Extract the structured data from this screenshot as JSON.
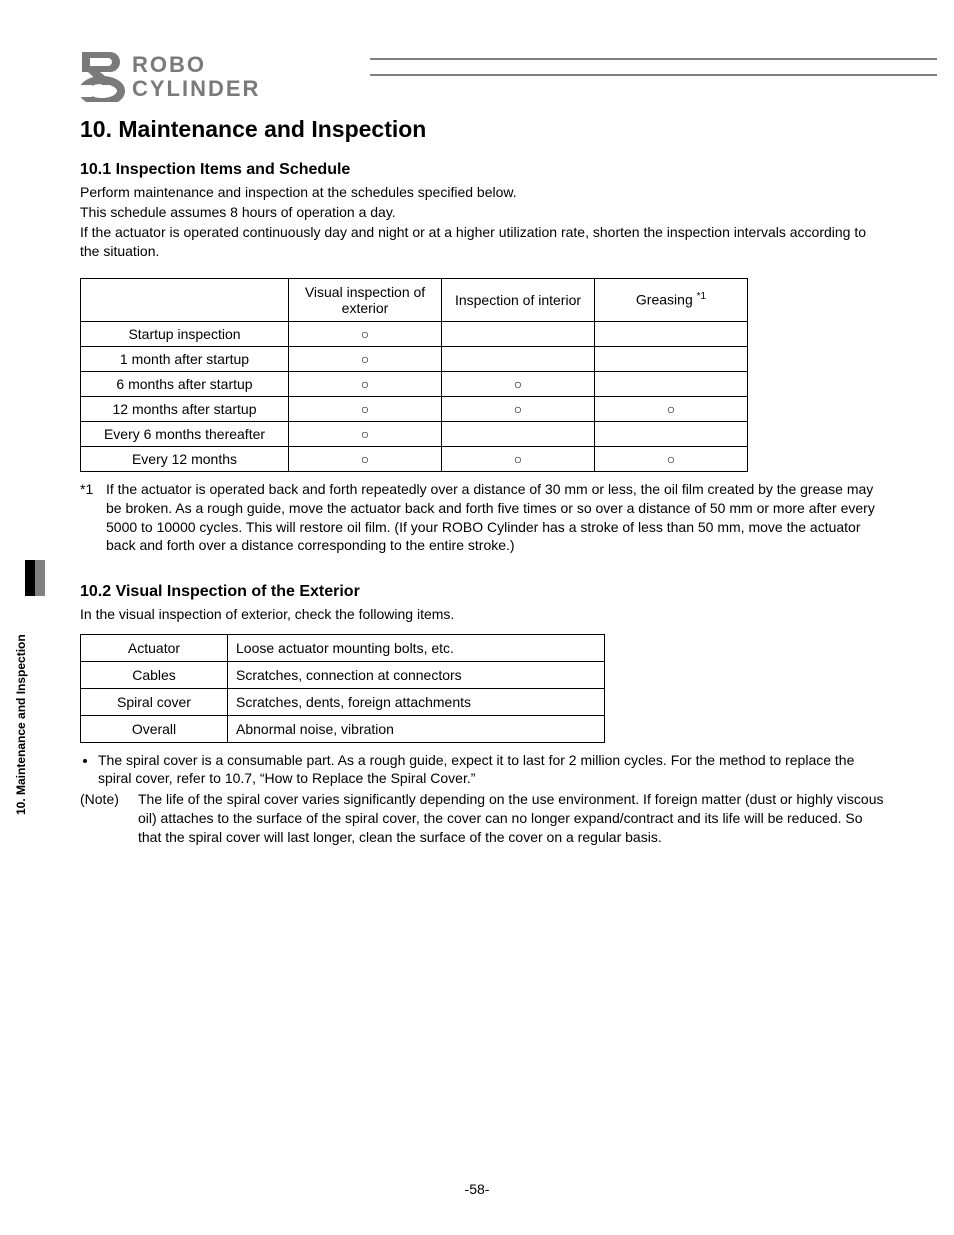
{
  "brand": {
    "line1": "ROBO",
    "line2": "CYLINDER"
  },
  "sideTab": "10. Maintenance and Inspection",
  "chapter": "10. Maintenance and Inspection",
  "section1": {
    "title": "10.1  Inspection Items and Schedule",
    "p1": "Perform maintenance and inspection at the schedules specified below.",
    "p2": "This schedule assumes 8 hours of operation a day.",
    "p3": "If the actuator is operated continuously day and night or at a higher utilization rate, shorten the inspection intervals according to the situation."
  },
  "scheduleTable": {
    "headers": [
      "",
      "Visual inspection of exterior",
      "Inspection of interior",
      "Greasing"
    ],
    "greasingSup": "*1",
    "circle": "○",
    "rows": [
      {
        "label": "Startup inspection",
        "c1": true,
        "c2": false,
        "c3": false
      },
      {
        "label": "1 month after startup",
        "c1": true,
        "c2": false,
        "c3": false
      },
      {
        "label": "6 months after startup",
        "c1": true,
        "c2": true,
        "c3": false
      },
      {
        "label": "12 months after startup",
        "c1": true,
        "c2": true,
        "c3": true
      },
      {
        "label": "Every 6 months thereafter",
        "c1": true,
        "c2": false,
        "c3": false
      },
      {
        "label": "Every 12 months",
        "c1": true,
        "c2": true,
        "c3": true
      }
    ]
  },
  "footnote1": {
    "mark": "*1",
    "text": "If the actuator is operated back and forth repeatedly over a distance of 30 mm or less, the oil film created by the grease may be broken. As a rough guide, move the actuator back and forth five times or so over a distance of 50 mm or more after every 5000 to 10000 cycles. This will restore oil film. (If your ROBO Cylinder has a stroke of less than 50 mm, move the actuator back and forth over a distance corresponding to the entire stroke.)",
    "colors": {
      "text": "#000000"
    }
  },
  "section2": {
    "title": "10.2  Visual Inspection of the Exterior",
    "intro": "In the visual inspection of exterior, check the following items."
  },
  "visTable": {
    "rows": [
      {
        "a": "Actuator",
        "b": "Loose actuator mounting bolts, etc."
      },
      {
        "a": "Cables",
        "b": "Scratches, connection at connectors"
      },
      {
        "a": "Spiral cover",
        "b": "Scratches, dents, foreign attachments"
      },
      {
        "a": "Overall",
        "b": "Abnormal noise, vibration"
      }
    ]
  },
  "bullet1": "The spiral cover is a consumable part. As a rough guide, expect it to last for 2 million cycles. For the method to replace the spiral cover, refer to 10.7, “How to Replace the Spiral Cover.”",
  "note": {
    "mark": "(Note)",
    "text": "The life of the spiral cover varies significantly depending on the use environment. If foreign matter (dust or highly viscous oil) attaches to the surface of the spiral cover, the cover can no longer expand/contract and its life will be reduced. So that the spiral cover will last longer, clean the surface of the cover on a regular basis."
  },
  "pageNumber": "-58-",
  "style": {
    "body_font": "Arial",
    "body_fontsize_pt": 10.5,
    "heading_fontsize_pt": 18,
    "section_fontsize_pt": 12,
    "text_color": "#000000",
    "border_color": "#000000",
    "rule_color": "#808080",
    "background_color": "#ffffff"
  }
}
